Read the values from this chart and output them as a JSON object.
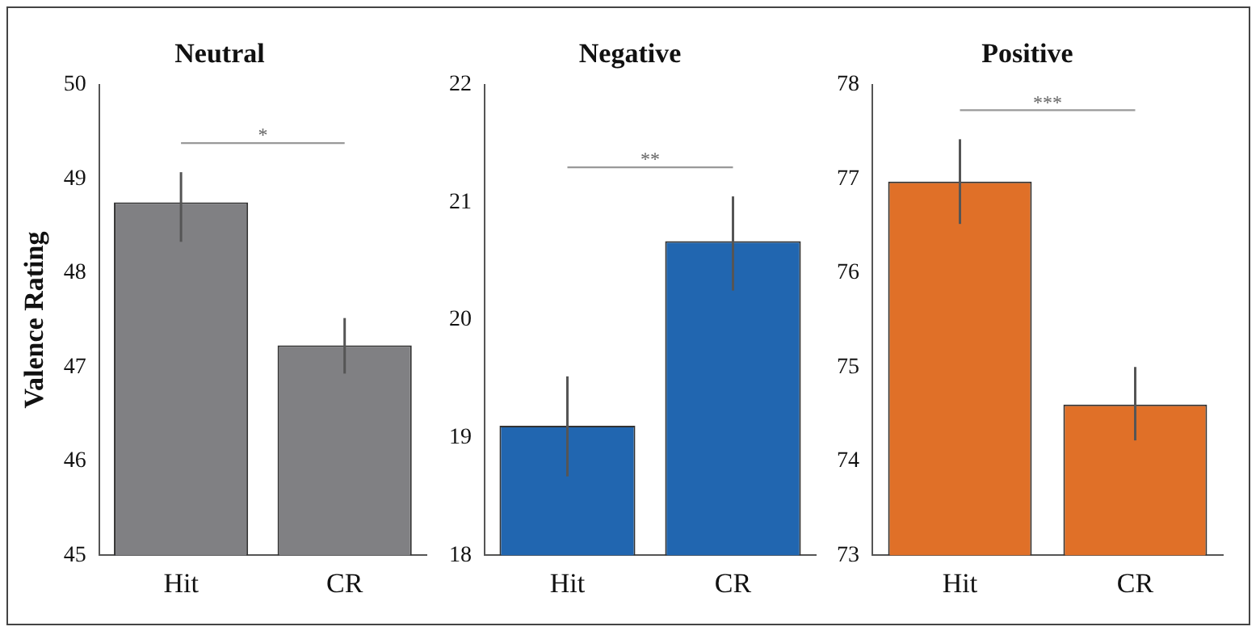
{
  "chart_data": [
    {
      "type": "bar",
      "title": "Neutral",
      "ylabel": "Valence Rating",
      "categories": [
        "Hit",
        "CR"
      ],
      "values": [
        48.75,
        47.23
      ],
      "color": "#808083",
      "errors": [
        [
          48.33,
          49.07
        ],
        [
          46.93,
          47.52
        ]
      ],
      "ylim": [
        45,
        50
      ],
      "yticks": [
        45,
        46,
        47,
        48,
        49,
        50
      ],
      "annotations": [
        "*"
      ]
    },
    {
      "type": "bar",
      "title": "Negative",
      "categories": [
        "Hit",
        "CR"
      ],
      "values": [
        19.1,
        20.67
      ],
      "color": "#2166b0",
      "errors": [
        [
          18.67,
          19.52
        ],
        [
          20.25,
          21.05
        ]
      ],
      "ylim": [
        18,
        22
      ],
      "yticks": [
        18,
        19,
        20,
        21,
        22
      ],
      "annotations": [
        "**"
      ]
    },
    {
      "type": "bar",
      "title": "Positive",
      "categories": [
        "Hit",
        "CR"
      ],
      "values": [
        76.97,
        74.6
      ],
      "color": "#e07028",
      "errors": [
        [
          76.52,
          77.42
        ],
        [
          74.22,
          75.0
        ]
      ],
      "ylim": [
        73,
        78
      ],
      "yticks": [
        73,
        74,
        75,
        76,
        77,
        78
      ],
      "annotations": [
        "***"
      ]
    }
  ]
}
